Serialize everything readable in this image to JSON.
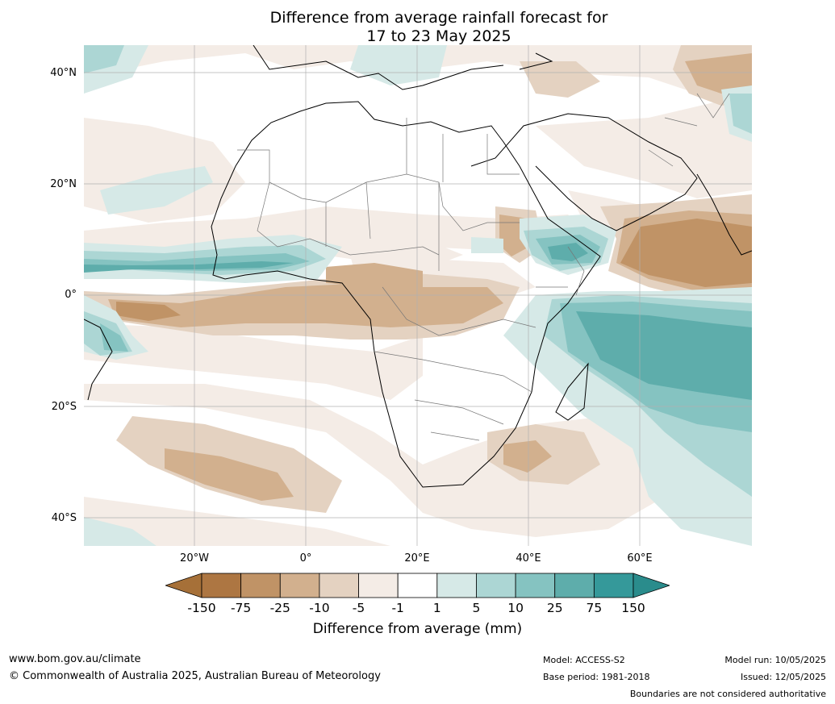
{
  "title_line1": "Difference from average rainfall forecast for",
  "title_line2": "17 to 23 May 2025",
  "lat_labels": [
    "40°N",
    "20°N",
    "0°",
    "20°S",
    "40°S"
  ],
  "lon_labels": [
    "20°W",
    "0°",
    "20°E",
    "40°E",
    "60°E"
  ],
  "colorbar": {
    "label": "Difference from average (mm)",
    "ticks": [
      "-150",
      "-75",
      "-25",
      "-10",
      "-5",
      "-1",
      "1",
      "5",
      "10",
      "25",
      "75",
      "150"
    ],
    "colors": [
      "#a67038",
      "#ad7642",
      "#c09366",
      "#d2b08e",
      "#e4d2c1",
      "#f4ece6",
      "#ffffff",
      "#d6e9e7",
      "#acd6d4",
      "#85c3c1",
      "#5eadab",
      "#35999a",
      "#2a8c8c"
    ]
  },
  "footer": {
    "website": "www.bom.gov.au/climate",
    "copyright": "© Commonwealth of Australia 2025, Australian Bureau of Meteorology",
    "model": "Model: ACCESS-S2",
    "base_period": "Base period: 1981-2018",
    "model_run": "Model run: 10/05/2025",
    "issued": "Issued: 12/05/2025",
    "disclaimer": "Boundaries are not considered authoritative"
  }
}
